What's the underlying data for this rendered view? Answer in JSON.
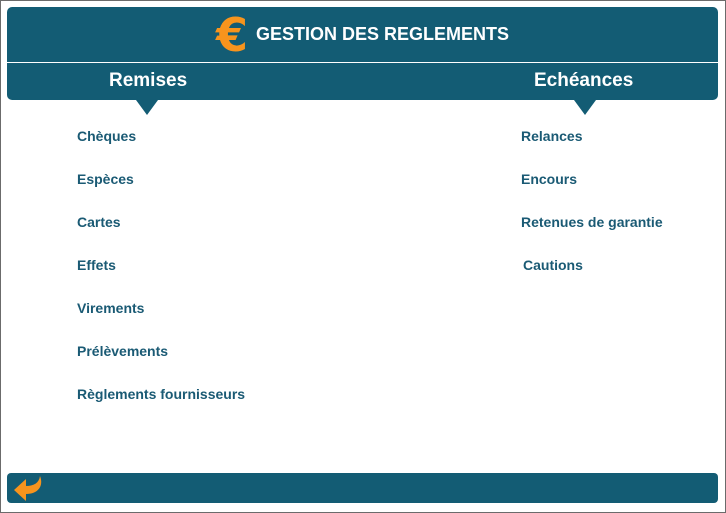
{
  "header": {
    "title": "GESTION DES REGLEMENTS",
    "icon": "euro-icon",
    "currency_symbol": "€"
  },
  "colors": {
    "primary": "#135c74",
    "accent": "#f7941d",
    "link": "#1a5a74"
  },
  "sections": {
    "remises": {
      "label": "Remises",
      "items": [
        "Chèques",
        "Espèces",
        "Cartes",
        "Effets",
        "Virements",
        "Prélèvements",
        "Règlements fournisseurs"
      ]
    },
    "echeances": {
      "label": "Echéances",
      "items": [
        "Relances",
        "Encours",
        "Retenues de garantie",
        "Cautions"
      ]
    }
  },
  "footer": {
    "back_icon": "back-arrow-icon"
  }
}
